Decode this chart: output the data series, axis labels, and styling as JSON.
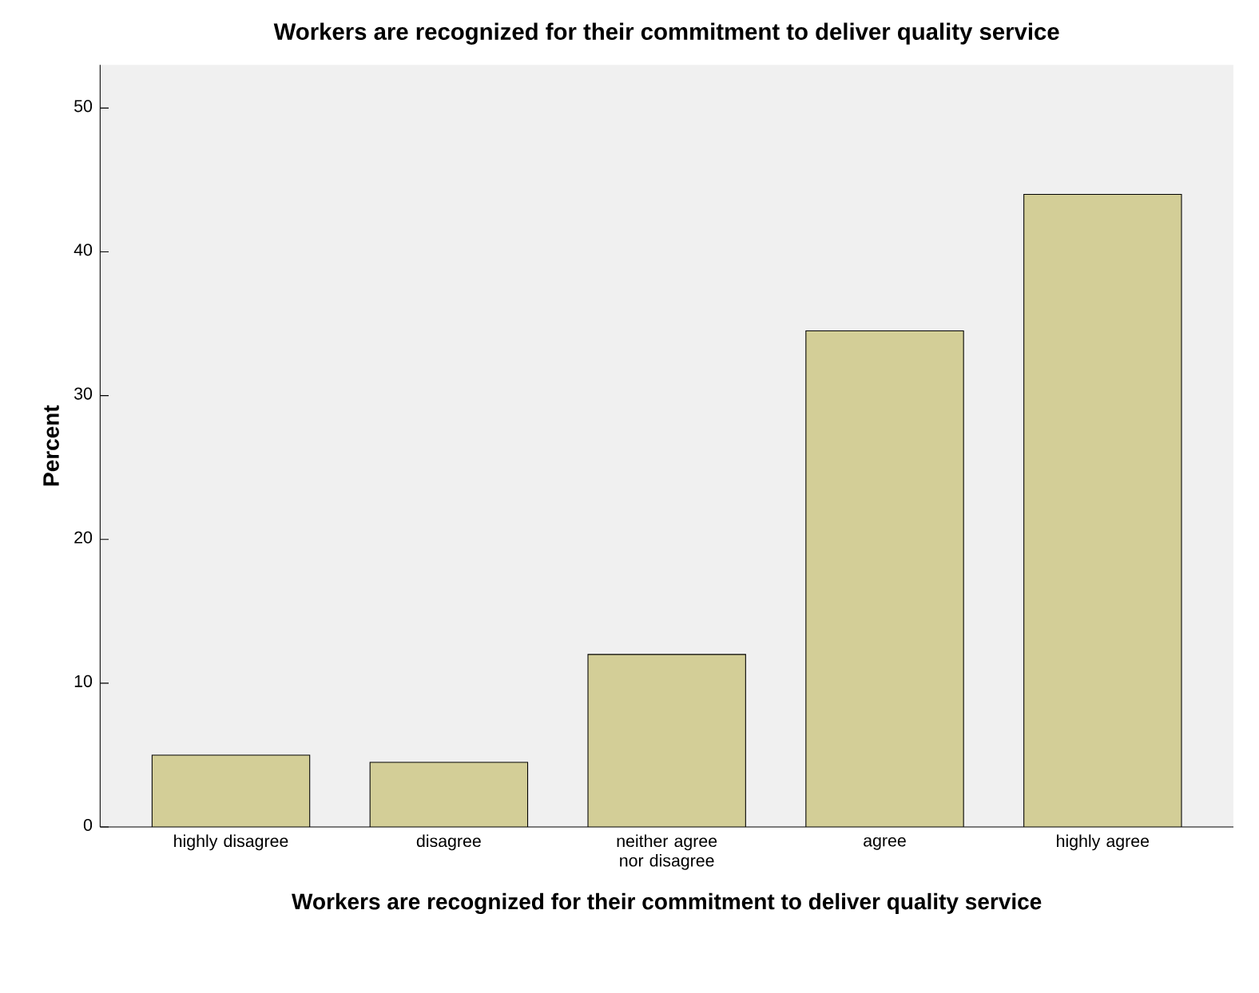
{
  "chart_data": {
    "type": "bar",
    "title": "Workers are recognized for their commitment to deliver quality service",
    "xlabel": "Workers are recognized for their commitment to deliver quality service",
    "ylabel": "Percent",
    "categories": [
      "highly disagree",
      "disagree",
      "neither agree nor disagree",
      "agree",
      "highly agree"
    ],
    "values": [
      5.0,
      4.5,
      12.0,
      34.5,
      44.0
    ],
    "color": "#d3ce97",
    "ylim": [
      0,
      53
    ],
    "yticks": [
      0,
      10,
      20,
      30,
      40,
      50
    ],
    "grid": false
  }
}
